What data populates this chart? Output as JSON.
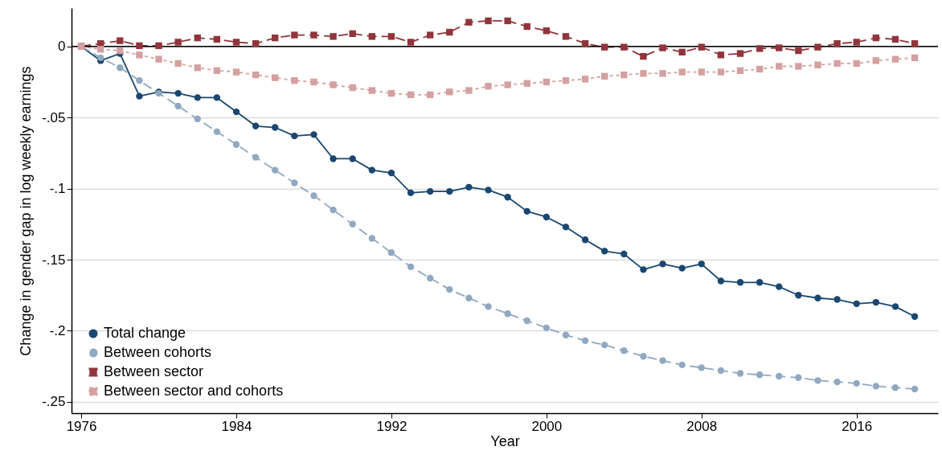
{
  "chart_data": {
    "type": "line",
    "xlabel": "Year",
    "ylabel": "Change in gender gap in log weekly earnings",
    "x": [
      1976,
      1977,
      1978,
      1979,
      1980,
      1981,
      1982,
      1983,
      1984,
      1985,
      1986,
      1987,
      1988,
      1989,
      1990,
      1991,
      1992,
      1993,
      1994,
      1995,
      1996,
      1997,
      1998,
      1999,
      2000,
      2001,
      2002,
      2003,
      2004,
      2005,
      2006,
      2007,
      2008,
      2009,
      2010,
      2011,
      2012,
      2013,
      2014,
      2015,
      2016,
      2017,
      2018,
      2019
    ],
    "series": [
      {
        "name": "Total change",
        "color": "#1a476f",
        "marker": "circle",
        "line_style": "solid",
        "values": [
          0,
          -0.01,
          -0.005,
          -0.035,
          -0.032,
          -0.033,
          -0.036,
          -0.036,
          -0.046,
          -0.056,
          -0.057,
          -0.063,
          -0.062,
          -0.079,
          -0.079,
          -0.087,
          -0.089,
          -0.103,
          -0.102,
          -0.102,
          -0.099,
          -0.101,
          -0.106,
          -0.116,
          -0.12,
          -0.127,
          -0.136,
          -0.144,
          -0.146,
          -0.157,
          -0.153,
          -0.156,
          -0.153,
          -0.165,
          -0.166,
          -0.166,
          -0.169,
          -0.175,
          -0.177,
          -0.178,
          -0.181,
          -0.18,
          -0.183,
          -0.19
        ]
      },
      {
        "name": "Between cohorts",
        "color": "#90a8c0",
        "marker": "circle",
        "line_style": "dashed",
        "values": [
          0,
          -0.008,
          -0.015,
          -0.024,
          -0.033,
          -0.042,
          -0.051,
          -0.06,
          -0.069,
          -0.078,
          -0.087,
          -0.096,
          -0.105,
          -0.115,
          -0.125,
          -0.135,
          -0.145,
          -0.155,
          -0.163,
          -0.171,
          -0.177,
          -0.183,
          -0.188,
          -0.193,
          -0.198,
          -0.203,
          -0.207,
          -0.21,
          -0.214,
          -0.218,
          -0.221,
          -0.224,
          -0.226,
          -0.228,
          -0.23,
          -0.231,
          -0.232,
          -0.233,
          -0.235,
          -0.236,
          -0.237,
          -0.239,
          -0.24,
          -0.241
        ]
      },
      {
        "name": "Between sector",
        "color": "#90353b",
        "marker": "square",
        "line_style": "dashed",
        "values": [
          0,
          0.002,
          0.004,
          0.0005,
          0.0005,
          0.003,
          0.006,
          0.005,
          0.003,
          0.002,
          0.006,
          0.008,
          0.008,
          0.007,
          0.009,
          0.007,
          0.007,
          0.003,
          0.008,
          0.01,
          0.017,
          0.018,
          0.018,
          0.014,
          0.011,
          0.007,
          0.002,
          -0.0005,
          -0.0005,
          -0.007,
          -0.001,
          -0.004,
          -0.0005,
          -0.006,
          -0.005,
          -0.0015,
          -0.001,
          -0.003,
          -0.0005,
          0.002,
          0.003,
          0.006,
          0.005,
          0.002
        ]
      },
      {
        "name": "Between sector and cohorts",
        "color": "#d4a0a0",
        "marker": "square",
        "line_style": "dotted",
        "values": [
          0,
          -0.002,
          -0.003,
          -0.006,
          -0.009,
          -0.012,
          -0.015,
          -0.017,
          -0.018,
          -0.02,
          -0.022,
          -0.024,
          -0.025,
          -0.027,
          -0.029,
          -0.031,
          -0.033,
          -0.034,
          -0.034,
          -0.032,
          -0.031,
          -0.028,
          -0.027,
          -0.026,
          -0.025,
          -0.024,
          -0.023,
          -0.021,
          -0.02,
          -0.019,
          -0.019,
          -0.018,
          -0.018,
          -0.018,
          -0.017,
          -0.016,
          -0.014,
          -0.014,
          -0.013,
          -0.012,
          -0.012,
          -0.01,
          -0.009,
          -0.008
        ]
      }
    ],
    "xlim": [
      1975.5,
      2020.2
    ],
    "xticks": [
      1976,
      1984,
      1992,
      2000,
      2008,
      2016
    ],
    "ylim": [
      -0.258,
      0.027
    ],
    "yticks": [
      {
        "value": 0,
        "label": "0"
      },
      {
        "value": -0.05,
        "label": "-.05"
      },
      {
        "value": -0.1,
        "label": "-.1"
      },
      {
        "value": -0.15,
        "label": "-.15"
      },
      {
        "value": -0.2,
        "label": "-.2"
      },
      {
        "value": -0.25,
        "label": "-.25"
      }
    ],
    "ref_lines": [
      {
        "axis": "y",
        "value": 0,
        "color": "#000000"
      }
    ],
    "grid": "y",
    "legend": "bottom left"
  }
}
